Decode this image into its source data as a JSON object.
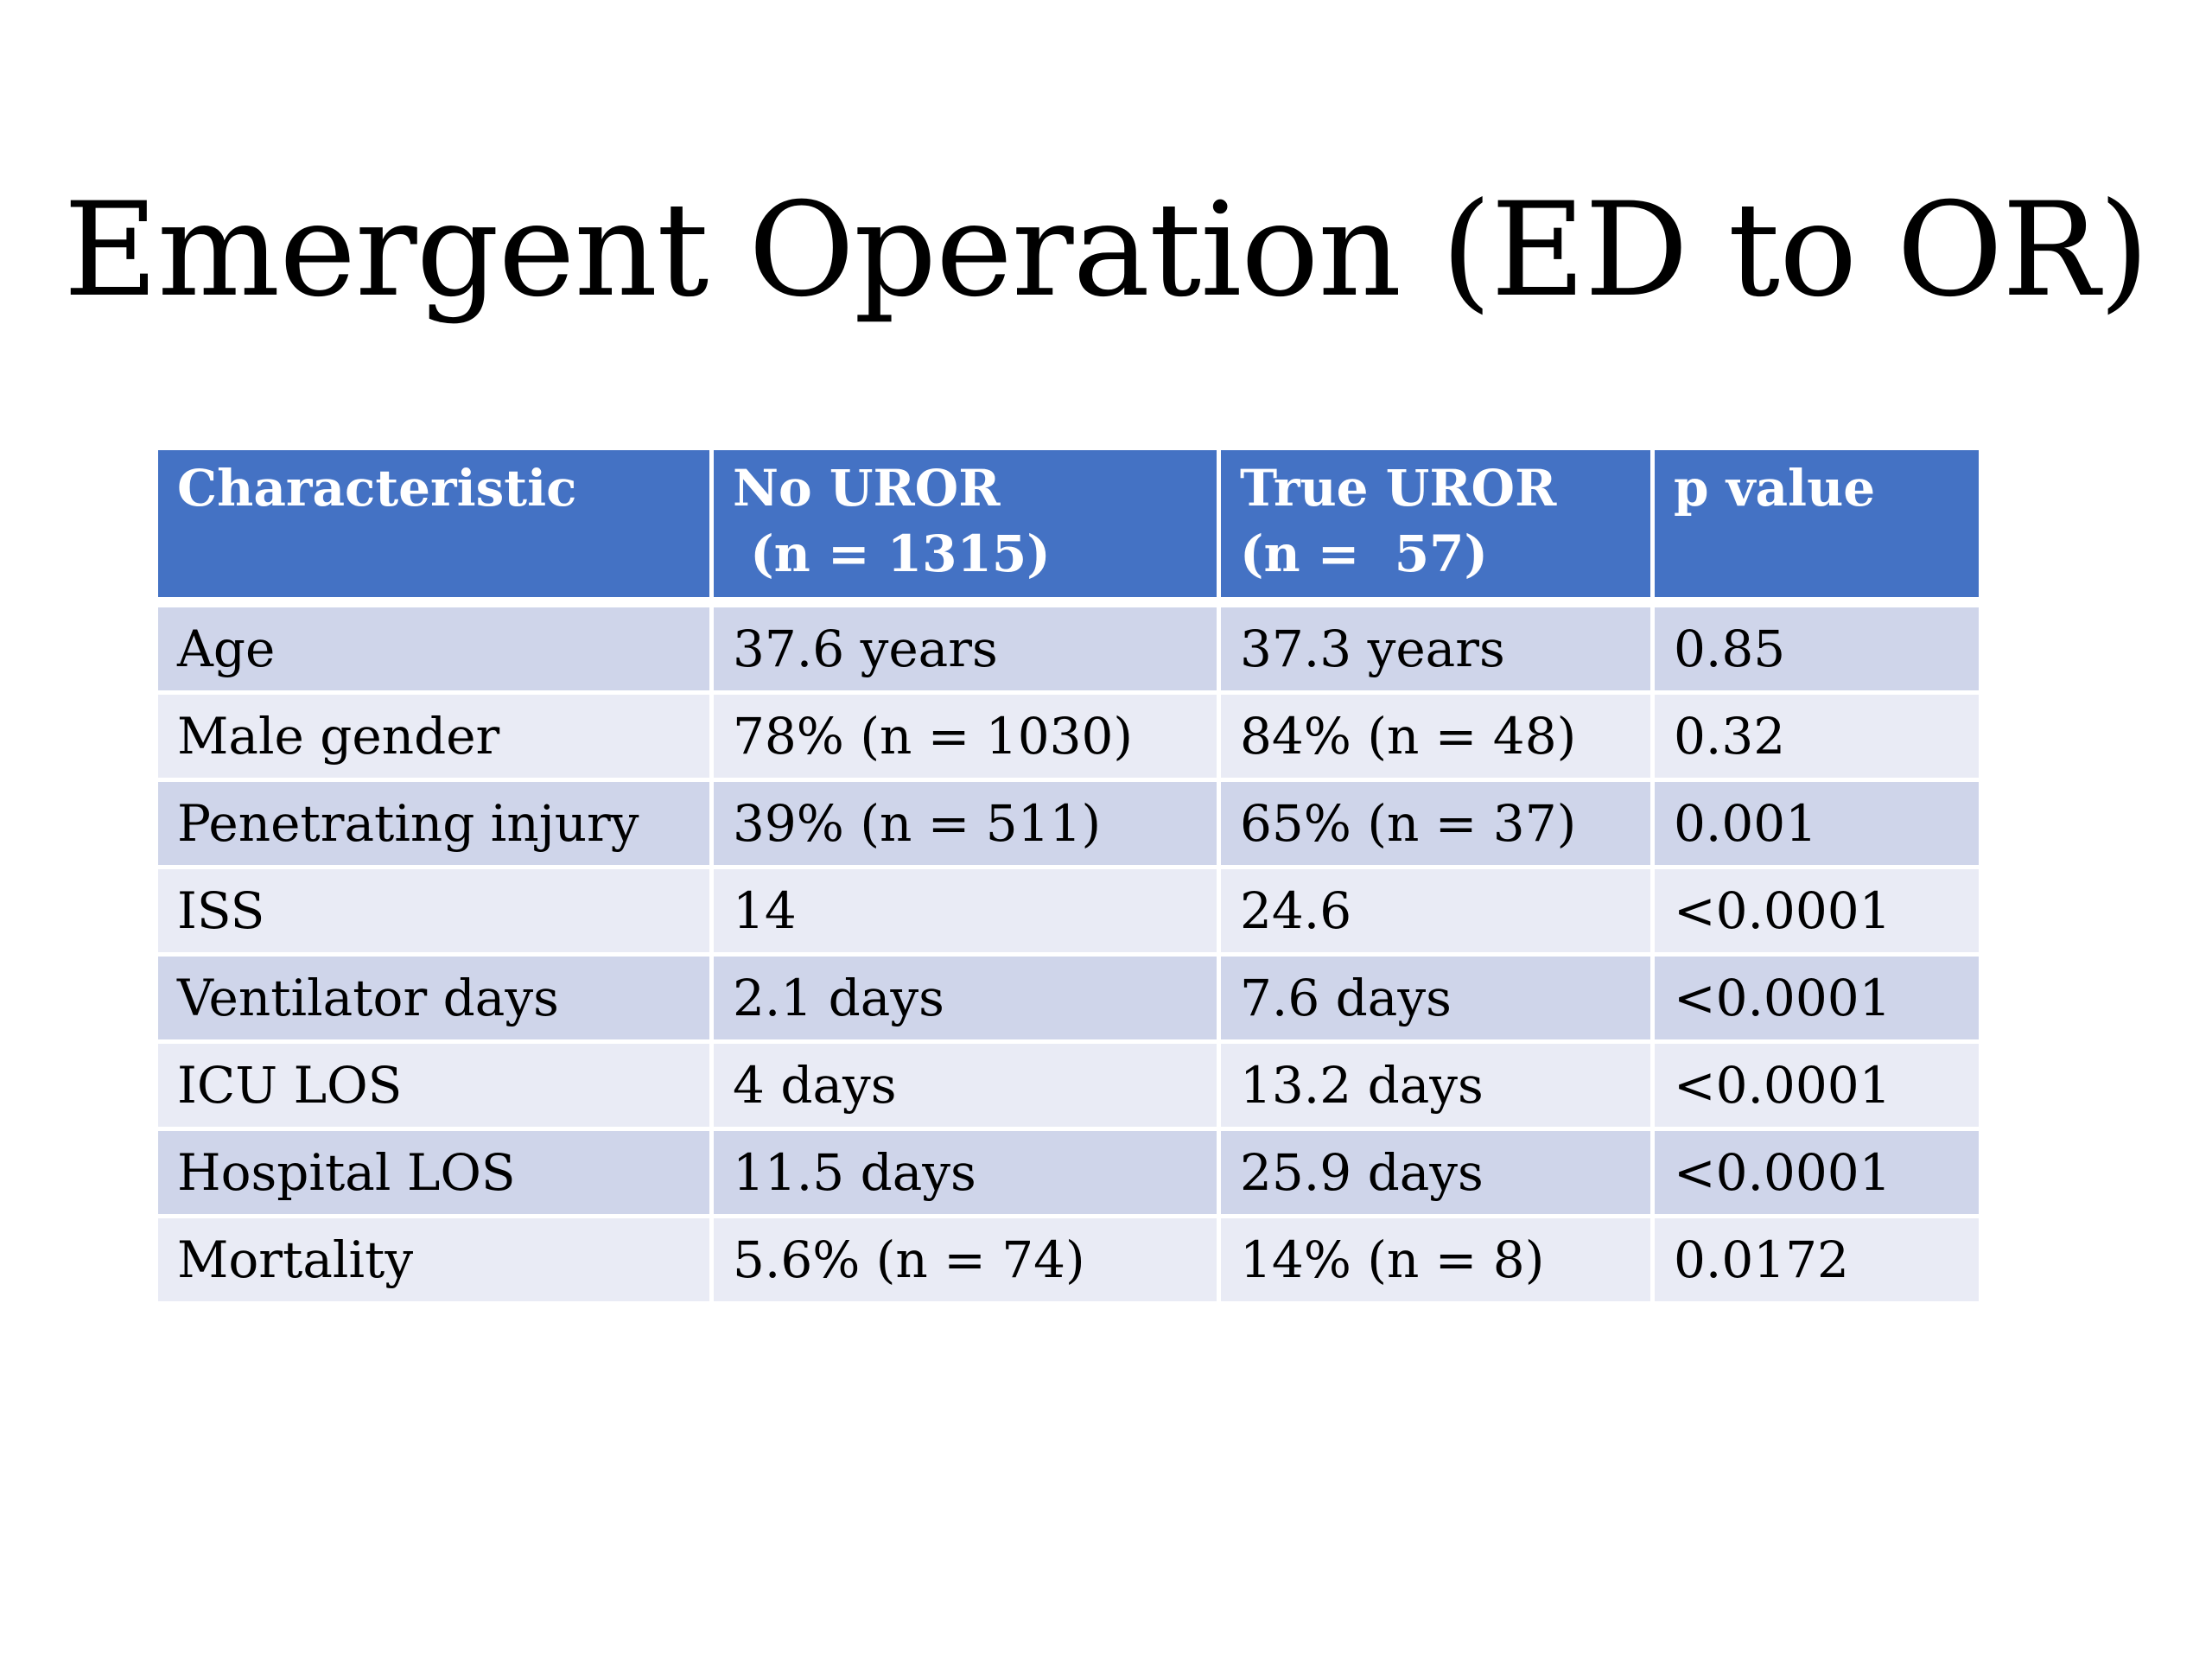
{
  "title": "Emergent Operation (ED to OR)",
  "table": {
    "headers": [
      {
        "line1": "Characteristic",
        "line2": ""
      },
      {
        "line1": "No UROR",
        "line2": " (n = 1315)"
      },
      {
        "line1": "True UROR",
        "line2": "(n =  57)"
      },
      {
        "line1": "p value",
        "line2": ""
      }
    ],
    "rows": [
      [
        "Age",
        "37.6 years",
        "37.3 years",
        "0.85"
      ],
      [
        "Male gender",
        "78% (n = 1030)",
        "84% (n = 48)",
        "0.32"
      ],
      [
        "Penetrating injury",
        "39% (n = 511)",
        "65% (n = 37)",
        "0.001"
      ],
      [
        "ISS",
        "14",
        "24.6",
        "<0.0001"
      ],
      [
        "Ventilator days",
        "2.1 days",
        "7.6 days",
        "<0.0001"
      ],
      [
        "ICU LOS",
        "4 days",
        "13.2 days",
        "<0.0001"
      ],
      [
        "Hospital LOS",
        "11.5 days",
        "25.9 days",
        "<0.0001"
      ],
      [
        "Mortality",
        "5.6% (n = 74)",
        "14% (n = 8)",
        "0.0172"
      ]
    ]
  },
  "colors": {
    "header_bg": "#4472c4",
    "row_odd": "#cfd5ea",
    "row_even": "#e9ebf5"
  }
}
